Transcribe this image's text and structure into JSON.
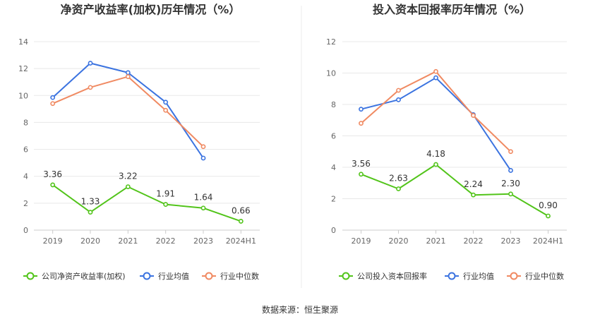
{
  "source": "数据来源：恒生聚源",
  "chart_data": [
    {
      "type": "line",
      "title": "净资产收益率(加权)历年情况（%）",
      "categories": [
        "2019",
        "2020",
        "2021",
        "2022",
        "2023",
        "2024H1"
      ],
      "ylim": [
        0,
        14
      ],
      "yticks": [
        0,
        2,
        4,
        6,
        8,
        10,
        12,
        14
      ],
      "grid": true,
      "legend_position": "bottom-left",
      "series": [
        {
          "name": "公司净资产收益率(加权)",
          "color": "#52c41a",
          "values": [
            3.36,
            1.33,
            3.22,
            1.91,
            1.64,
            0.66
          ],
          "labels": [
            "3.36",
            "1.33",
            "3.22",
            "1.91",
            "1.64",
            "0.66"
          ]
        },
        {
          "name": "行业均值",
          "color": "#3b73e0",
          "values": [
            9.85,
            12.4,
            11.7,
            9.5,
            5.35,
            null
          ]
        },
        {
          "name": "行业中位数",
          "color": "#f08a62",
          "values": [
            9.4,
            10.6,
            11.4,
            8.9,
            6.2,
            null
          ]
        }
      ]
    },
    {
      "type": "line",
      "title": "投入资本回报率历年情况（%）",
      "categories": [
        "2019",
        "2020",
        "2021",
        "2022",
        "2023",
        "2024H1"
      ],
      "ylim": [
        0,
        12
      ],
      "yticks": [
        0,
        2,
        4,
        6,
        8,
        10,
        12
      ],
      "grid": true,
      "legend_position": "bottom-left",
      "series": [
        {
          "name": "公司投入资本回报率",
          "color": "#52c41a",
          "values": [
            3.56,
            2.63,
            4.18,
            2.24,
            2.3,
            0.9
          ],
          "labels": [
            "3.56",
            "2.63",
            "4.18",
            "2.24",
            "2.30",
            "0.90"
          ]
        },
        {
          "name": "行业均值",
          "color": "#3b73e0",
          "values": [
            7.7,
            8.3,
            9.7,
            7.35,
            3.8,
            null
          ]
        },
        {
          "name": "行业中位数",
          "color": "#f08a62",
          "values": [
            6.8,
            8.9,
            10.1,
            7.3,
            5.0,
            null
          ]
        }
      ]
    }
  ]
}
